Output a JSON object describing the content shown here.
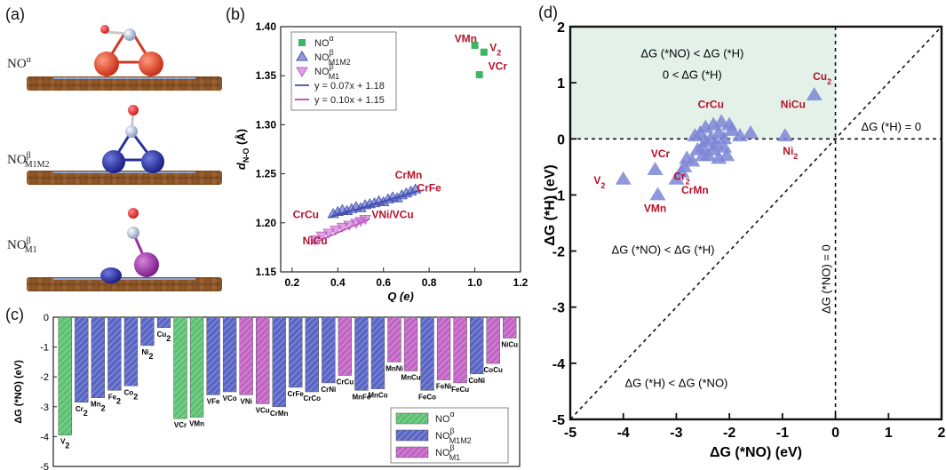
{
  "panel_labels": {
    "a": "(a)",
    "b": "(b)",
    "c": "(c)",
    "d": "(d)"
  },
  "structures": [
    {
      "label_main": "NO",
      "label_sup": "α",
      "label_sub": "",
      "metal_color": "#e0452c"
    },
    {
      "label_main": "NO",
      "label_sup": "β",
      "label_sub": "M1M2",
      "metal_color": "#2a2f9e"
    },
    {
      "label_main": "NO",
      "label_sup": "β",
      "label_sub": "M1",
      "metal_color": "#9b2fa5"
    }
  ],
  "chart_data": [
    {
      "id": "b",
      "type": "scatter",
      "xlabel": "Q (e)",
      "ylabel": "d",
      "ylabel_sub": "N-O",
      "ylabel_unit": "(Å)",
      "xlim": [
        0.15,
        1.2
      ],
      "ylim": [
        1.15,
        1.4
      ],
      "xticks": [
        "0.2",
        "0.4",
        "0.6",
        "0.8",
        "1.0",
        "1.2"
      ],
      "yticks": [
        "1.15",
        "1.20",
        "1.25",
        "1.30",
        "1.35",
        "1.40"
      ],
      "legend": [
        {
          "text": "NO",
          "sup": "α",
          "sub": ""
        },
        {
          "text": "NO",
          "sup": "β",
          "sub": "M1M2"
        },
        {
          "text": "NO",
          "sup": "β",
          "sub": "M1"
        },
        {
          "text": "y = 0.07x + 1.18"
        },
        {
          "text": "y = 0.10x + 1.15"
        }
      ],
      "series": [
        {
          "name": "NOα",
          "color": "#3db565",
          "marker": "square",
          "x": [
            1.0,
            1.04,
            1.02
          ],
          "y": [
            1.381,
            1.374,
            1.351
          ]
        },
        {
          "name": "NOβM1M2",
          "color": "#3f4db3",
          "marker": "triangle-up",
          "x": [
            0.38,
            0.4,
            0.42,
            0.44,
            0.46,
            0.48,
            0.5,
            0.52,
            0.54,
            0.56,
            0.58,
            0.6,
            0.62,
            0.64,
            0.66,
            0.68,
            0.7,
            0.72,
            0.74
          ],
          "y": [
            1.209,
            1.211,
            1.213,
            1.212,
            1.214,
            1.216,
            1.215,
            1.218,
            1.219,
            1.22,
            1.222,
            1.221,
            1.224,
            1.226,
            1.225,
            1.228,
            1.23,
            1.232,
            1.234
          ]
        },
        {
          "name": "NOβM1",
          "color": "#c05bc8",
          "marker": "triangle-down",
          "x": [
            0.3,
            0.33,
            0.36,
            0.39,
            0.42,
            0.45,
            0.48,
            0.5,
            0.52
          ],
          "y": [
            1.183,
            1.187,
            1.19,
            1.193,
            1.196,
            1.198,
            1.2,
            1.202,
            1.204
          ]
        }
      ],
      "fits": [
        {
          "slope": 0.07,
          "intercept": 1.18,
          "x_range": [
            0.36,
            0.76
          ],
          "color": "#2b3ea8"
        },
        {
          "slope": 0.1,
          "intercept": 1.15,
          "x_range": [
            0.28,
            0.54
          ],
          "color": "#b0309f"
        }
      ],
      "annotations": [
        {
          "text": "VMn",
          "x": 0.96,
          "y": 1.384
        },
        {
          "text": "V",
          "sub": "2",
          "x": 1.09,
          "y": 1.375
        },
        {
          "text": "VCr",
          "x": 1.1,
          "y": 1.356
        },
        {
          "text": "CrMn",
          "x": 0.71,
          "y": 1.245
        },
        {
          "text": "CrFe",
          "x": 0.8,
          "y": 1.232
        },
        {
          "text": "CrCu",
          "x": 0.26,
          "y": 1.205
        },
        {
          "text": "VNi/VCu",
          "x": 0.64,
          "y": 1.205
        },
        {
          "text": "NiCu",
          "x": 0.3,
          "y": 1.178
        }
      ]
    },
    {
      "id": "c",
      "type": "bar",
      "ylabel": "ΔG (*NO) (eV)",
      "ylim": [
        -5,
        0
      ],
      "yticks": [
        "0",
        "-1",
        "-2",
        "-3",
        "-4",
        "-5"
      ],
      "legend": [
        {
          "text": "NO",
          "sup": "α",
          "sub": ""
        },
        {
          "text": "NO",
          "sup": "β",
          "sub": "M1M2"
        },
        {
          "text": "NO",
          "sup": "β",
          "sub": "M1"
        }
      ],
      "categories": [
        "V2",
        "Cr2",
        "Mn2",
        "Fe2",
        "Co2",
        "Ni2",
        "Cu2",
        "VCr",
        "VMn",
        "VFe",
        "VCo",
        "VNi",
        "VCu",
        "CrMn",
        "CrFe",
        "CrCo",
        "CrNi",
        "CrCu",
        "MnFe",
        "MnCo",
        "MnNi",
        "MnCu",
        "FeCo",
        "FeNi",
        "FeCu",
        "CoNi",
        "CoCu",
        "NiCu"
      ],
      "category_labels": [
        {
          "t": "V",
          "s": "2"
        },
        {
          "t": "Cr",
          "s": "2"
        },
        {
          "t": "Mn",
          "s": "2"
        },
        {
          "t": "Fe",
          "s": "2"
        },
        {
          "t": "Co",
          "s": "2"
        },
        {
          "t": "Ni",
          "s": "2"
        },
        {
          "t": "Cu",
          "s": "2"
        },
        {
          "t": "VCr",
          "s": ""
        },
        {
          "t": "VMn",
          "s": ""
        },
        {
          "t": "VFe",
          "s": ""
        },
        {
          "t": "VCo",
          "s": ""
        },
        {
          "t": "VNi",
          "s": ""
        },
        {
          "t": "VCu",
          "s": ""
        },
        {
          "t": "CrMn",
          "s": ""
        },
        {
          "t": "CrFe",
          "s": ""
        },
        {
          "t": "CrCo",
          "s": ""
        },
        {
          "t": "CrNi",
          "s": ""
        },
        {
          "t": "CrCu",
          "s": ""
        },
        {
          "t": "MnFe",
          "s": ""
        },
        {
          "t": "MnCo",
          "s": ""
        },
        {
          "t": "MnNi",
          "s": ""
        },
        {
          "t": "MnCu",
          "s": ""
        },
        {
          "t": "FeCo",
          "s": ""
        },
        {
          "t": "FeNi",
          "s": ""
        },
        {
          "t": "FeCu",
          "s": ""
        },
        {
          "t": "CoNi",
          "s": ""
        },
        {
          "t": "CoCu",
          "s": ""
        },
        {
          "t": "NiCu",
          "s": ""
        }
      ],
      "values": [
        -3.95,
        -2.85,
        -2.7,
        -2.45,
        -2.3,
        -0.95,
        -0.35,
        -3.4,
        -3.35,
        -2.6,
        -2.5,
        -2.6,
        -2.9,
        -3.0,
        -2.35,
        -2.5,
        -2.2,
        -1.95,
        -2.45,
        -2.4,
        -1.5,
        -1.8,
        -2.45,
        -2.1,
        -2.2,
        -1.9,
        -1.55,
        -0.7
      ],
      "groups": [
        "a",
        "b",
        "b",
        "b",
        "b",
        "b",
        "b",
        "a",
        "a",
        "b",
        "b",
        "m",
        "m",
        "b",
        "b",
        "b",
        "b",
        "m",
        "b",
        "b",
        "m",
        "m",
        "b",
        "m",
        "m",
        "b",
        "m",
        "m"
      ],
      "colors": {
        "a": "#5cc272",
        "b": "#5a66c6",
        "m": "#c264c5"
      }
    },
    {
      "id": "d",
      "type": "scatter",
      "xlabel": "ΔG (*NO) (eV)",
      "ylabel": "ΔG (*H) (eV)",
      "xlim": [
        -5,
        2
      ],
      "ylim": [
        -5,
        2
      ],
      "xticks": [
        "-5",
        "-4",
        "-3",
        "-2",
        "-1",
        "0",
        "1",
        "2"
      ],
      "yticks": [
        "2",
        "1",
        "0",
        "-1",
        "-2",
        "-3",
        "-4",
        "-5"
      ],
      "shaded_region": {
        "x": [
          -5,
          0
        ],
        "y": [
          0,
          2
        ],
        "color": "#e3f1e8"
      },
      "region_text": [
        {
          "text": "ΔG (*NO) < ΔG (*H)",
          "x": -2.7,
          "y": 1.45
        },
        {
          "text": "0 < ΔG (*H)",
          "x": -2.7,
          "y": 1.07
        },
        {
          "text": "ΔG (*NO) < ΔG (*H)",
          "x": -3.25,
          "y": -2.05
        },
        {
          "text": "ΔG (*H) < ΔG (*NO)",
          "x": -3.0,
          "y": -4.42
        },
        {
          "text": "ΔG (*H) = 0",
          "x": 1.05,
          "y": 0.15
        },
        {
          "text": "ΔG (*NO) = 0",
          "x": -0.1,
          "y": -2.5,
          "rotate": -90
        }
      ],
      "series": [
        {
          "name": "NOβM1M2",
          "color": "#7c86d6",
          "x": [
            -4.0,
            -3.4,
            -3.35,
            -3.0,
            -2.9,
            -2.85,
            -2.8,
            -2.7,
            -2.65,
            -2.6,
            -2.55,
            -2.5,
            -2.5,
            -2.45,
            -2.45,
            -2.4,
            -2.35,
            -2.3,
            -2.3,
            -2.25,
            -2.2,
            -2.2,
            -2.15,
            -2.1,
            -2.1,
            -2.05,
            -2.0,
            -1.95,
            -1.8,
            -1.6,
            -0.95,
            -0.4
          ],
          "y": [
            -0.72,
            -0.55,
            -1.0,
            -0.72,
            -0.6,
            -0.5,
            -0.35,
            -0.4,
            0.05,
            -0.2,
            0.1,
            -0.3,
            -0.15,
            -0.05,
            0.2,
            -0.3,
            0.0,
            -0.2,
            0.25,
            -0.1,
            0.1,
            -0.35,
            0.3,
            0.0,
            -0.15,
            -0.3,
            0.25,
            0.15,
            0.05,
            0.1,
            0.05,
            0.78
          ]
        }
      ],
      "annotations": [
        {
          "text": "Cu",
          "sub": "2",
          "x": -0.25,
          "y": 1.05
        },
        {
          "text": "NiCu",
          "x": -0.8,
          "y": 0.55
        },
        {
          "text": "CrCu",
          "x": -2.35,
          "y": 0.55
        },
        {
          "text": "Ni",
          "sub": "2",
          "x": -0.85,
          "y": -0.28
        },
        {
          "text": "VCr",
          "x": -3.3,
          "y": -0.33
        },
        {
          "text": "Cr",
          "sub": "2",
          "x": -2.9,
          "y": -0.73
        },
        {
          "text": "CrMn",
          "x": -2.65,
          "y": -0.98
        },
        {
          "text": "V",
          "sub": "2",
          "x": -4.45,
          "y": -0.8
        },
        {
          "text": "VMn",
          "x": -3.4,
          "y": -1.3
        }
      ]
    }
  ]
}
